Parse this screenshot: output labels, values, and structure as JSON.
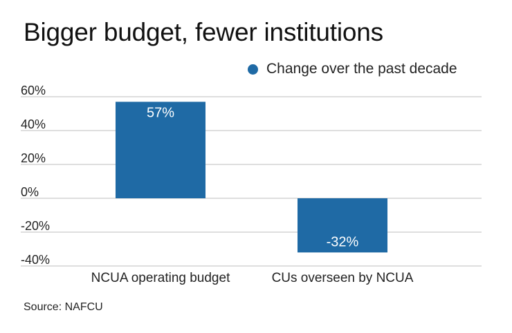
{
  "title": "Bigger budget, fewer institutions",
  "source": "Source: NAFCU",
  "colors": {
    "bar": "#1f6aa5",
    "grid": "#bdbdbd",
    "text": "#222222"
  },
  "chart_data": {
    "type": "bar",
    "categories": [
      "NCUA operating budget",
      "CUs overseen by NCUA"
    ],
    "series": [
      {
        "name": "Change over the past decade",
        "values": [
          57,
          -32
        ]
      }
    ],
    "data_labels": [
      "57%",
      "-32%"
    ],
    "ylim": [
      -40,
      60
    ],
    "yticks": [
      60,
      40,
      20,
      0,
      -20,
      -40
    ],
    "ytick_labels": [
      "60%",
      "40%",
      "20%",
      "0%",
      "-20%",
      "-40%"
    ],
    "grid": true,
    "legend": "top-right",
    "unit": "%"
  }
}
